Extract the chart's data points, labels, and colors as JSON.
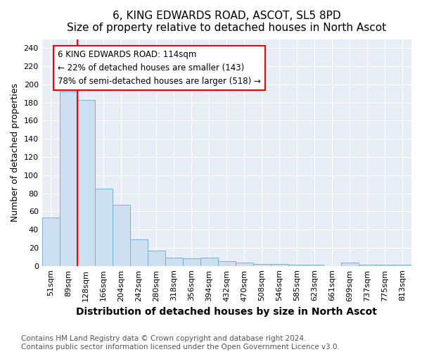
{
  "title": "6, KING EDWARDS ROAD, ASCOT, SL5 8PD",
  "subtitle": "Size of property relative to detached houses in North Ascot",
  "xlabel": "Distribution of detached houses by size in North Ascot",
  "ylabel": "Number of detached properties",
  "bar_color": "#cce0f0",
  "bar_edge_color": "#7ab0d4",
  "categories": [
    "51sqm",
    "89sqm",
    "128sqm",
    "166sqm",
    "204sqm",
    "242sqm",
    "280sqm",
    "318sqm",
    "356sqm",
    "394sqm",
    "432sqm",
    "470sqm",
    "508sqm",
    "546sqm",
    "585sqm",
    "623sqm",
    "661sqm",
    "699sqm",
    "737sqm",
    "775sqm",
    "813sqm"
  ],
  "values": [
    53,
    192,
    183,
    85,
    67,
    29,
    17,
    9,
    8,
    9,
    5,
    4,
    2,
    2,
    1,
    1,
    0,
    4,
    1,
    1,
    1
  ],
  "ylim": [
    0,
    250
  ],
  "yticks": [
    0,
    20,
    40,
    60,
    80,
    100,
    120,
    140,
    160,
    180,
    200,
    220,
    240
  ],
  "red_line_x": 2.0,
  "annotation_text_line1": "6 KING EDWARDS ROAD: 114sqm",
  "annotation_text_line2": "← 22% of detached houses are smaller (143)",
  "annotation_text_line3": "78% of semi-detached houses are larger (518) →",
  "footer_line1": "Contains HM Land Registry data © Crown copyright and database right 2024.",
  "footer_line2": "Contains public sector information licensed under the Open Government Licence v3.0.",
  "fig_bg_color": "#ffffff",
  "plot_bg_color": "#e8eef5",
  "grid_color": "#ffffff",
  "title_fontsize": 11,
  "subtitle_fontsize": 10,
  "xlabel_fontsize": 10,
  "ylabel_fontsize": 9,
  "tick_fontsize": 8,
  "annotation_fontsize": 8.5,
  "footer_fontsize": 7.5
}
